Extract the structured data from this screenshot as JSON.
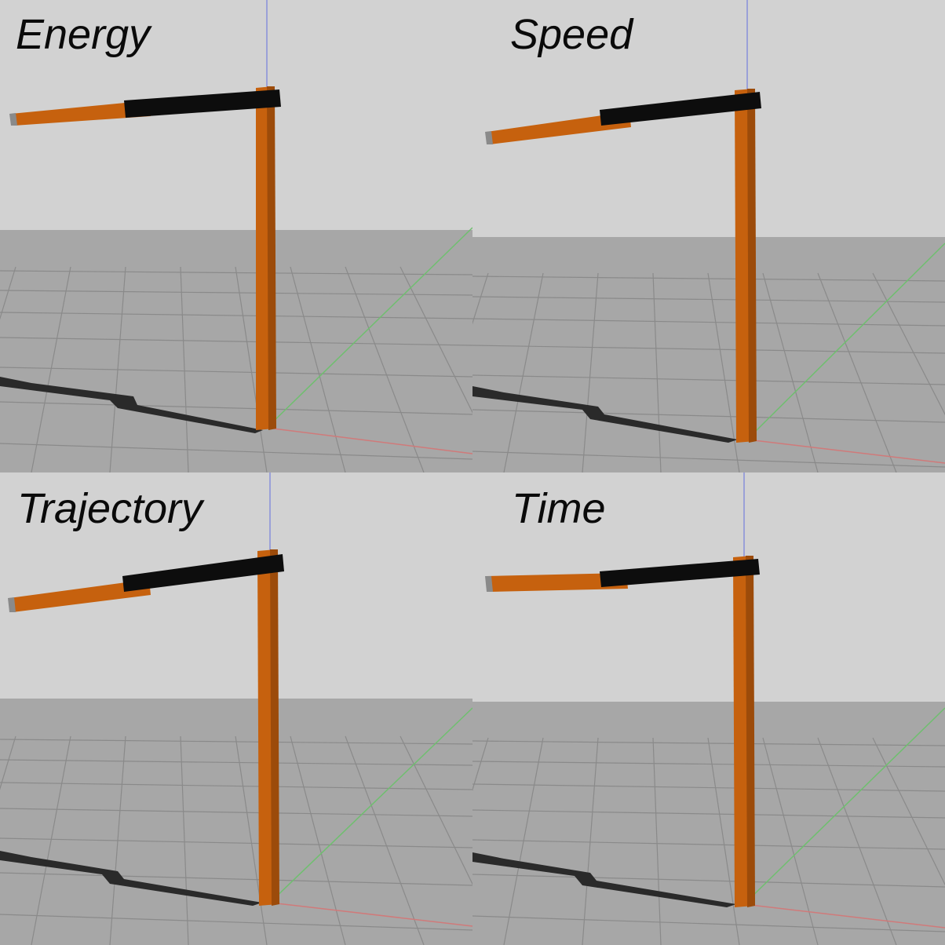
{
  "panels": [
    {
      "label": "Energy"
    },
    {
      "label": "Speed"
    },
    {
      "label": "Trajectory"
    },
    {
      "label": "Time"
    }
  ],
  "colors": {
    "sky": "#cfcfcf",
    "floor": "#a9a9a9",
    "grid_line": "#8c8c8c",
    "link_orange": "#c6610e",
    "link_orange_dark": "#8a3e06",
    "link_black": "#0d0d0d",
    "shadow": "#2a2a2a",
    "axis_z": "#9aa0d8",
    "axis_y": "#6fbf6f",
    "axis_x": "#d07a7a"
  }
}
